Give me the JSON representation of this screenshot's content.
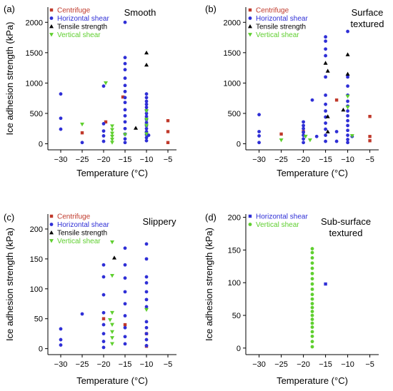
{
  "colors": {
    "Centrifuge": "#c0392b",
    "Horizontal shear": "#2f2fd6",
    "Tensile strength": "#000000",
    "Vertical shear": "#5fcf2f"
  },
  "chart_data": [
    {
      "type": "scatter",
      "letter": "(a)",
      "caption": [
        "Smooth"
      ],
      "xlabel": "Temperature (°C)",
      "ylabel": "Ice adhesion strength (kPa)",
      "xlim": [
        -33,
        -3
      ],
      "ylim": [
        -100,
        2250
      ],
      "xticks": [
        -30,
        -25,
        -20,
        -15,
        -10,
        -5
      ],
      "yticks": [
        0,
        500,
        1000,
        1500,
        2000
      ],
      "legend": [
        "Centrifuge",
        "Horizontal shear",
        "Tensile strength",
        "Vertical shear"
      ],
      "series": [
        {
          "name": "Centrifuge",
          "marker": "square",
          "points": [
            [
              -25,
              180
            ],
            [
              -19.5,
              360
            ],
            [
              -15.5,
              770
            ],
            [
              -5,
              380
            ],
            [
              -5,
              200
            ],
            [
              -5,
              20
            ]
          ]
        },
        {
          "name": "Horizontal shear",
          "marker": "circle",
          "points": [
            [
              -30,
              820
            ],
            [
              -30,
              420
            ],
            [
              -30,
              240
            ],
            [
              -25,
              20
            ],
            [
              -20,
              950
            ],
            [
              -20,
              330
            ],
            [
              -20,
              210
            ],
            [
              -20,
              130
            ],
            [
              -20,
              40
            ],
            [
              -15,
              2000
            ],
            [
              -15,
              1420
            ],
            [
              -15,
              1320
            ],
            [
              -15,
              1220
            ],
            [
              -15,
              1080
            ],
            [
              -15,
              960
            ],
            [
              -15,
              860
            ],
            [
              -15,
              760
            ],
            [
              -15,
              680
            ],
            [
              -15,
              560
            ],
            [
              -15,
              460
            ],
            [
              -15,
              360
            ],
            [
              -15,
              250
            ],
            [
              -15,
              160
            ],
            [
              -15,
              80
            ],
            [
              -15,
              20
            ],
            [
              -10,
              820
            ],
            [
              -10,
              760
            ],
            [
              -10,
              700
            ],
            [
              -10,
              650
            ],
            [
              -10,
              600
            ],
            [
              -10,
              550
            ],
            [
              -10,
              500
            ],
            [
              -10,
              450
            ],
            [
              -10,
              400
            ],
            [
              -10,
              350
            ],
            [
              -10,
              300
            ],
            [
              -10,
              250
            ],
            [
              -10,
              200
            ],
            [
              -10,
              150
            ],
            [
              -10,
              100
            ],
            [
              -10,
              50
            ],
            [
              -9.5,
              140
            ]
          ]
        },
        {
          "name": "Tensile strength",
          "marker": "triangle-up",
          "points": [
            [
              -10,
              1500
            ],
            [
              -10,
              1300
            ],
            [
              -12.5,
              260
            ]
          ]
        },
        {
          "name": "Vertical shear",
          "marker": "triangle-down",
          "points": [
            [
              -25,
              320
            ],
            [
              -19.5,
              1000
            ],
            [
              -18,
              290
            ],
            [
              -18,
              230
            ],
            [
              -18,
              170
            ],
            [
              -18,
              120
            ],
            [
              -18,
              70
            ],
            [
              -18,
              20
            ],
            [
              -15,
              150
            ],
            [
              -10,
              540
            ],
            [
              -10,
              400
            ],
            [
              -10,
              300
            ],
            [
              -10,
              160
            ]
          ]
        }
      ]
    },
    {
      "type": "scatter",
      "letter": "(b)",
      "caption": [
        "Surface",
        "textured"
      ],
      "xlabel": "Temperature (°C)",
      "ylabel": "",
      "xlim": [
        -33,
        -3
      ],
      "ylim": [
        -100,
        2250
      ],
      "xticks": [
        -30,
        -25,
        -20,
        -15,
        -10,
        -5
      ],
      "yticks": [
        0,
        500,
        1000,
        1500,
        2000
      ],
      "legend": [
        "Centrifuge",
        "Horizontal shear",
        "Tensile strength",
        "Vertical shear"
      ],
      "series": [
        {
          "name": "Centrifuge",
          "marker": "square",
          "points": [
            [
              -25,
              160
            ],
            [
              -20,
              200
            ],
            [
              -12.5,
              720
            ],
            [
              -5,
              450
            ],
            [
              -5,
              120
            ],
            [
              -5,
              50
            ]
          ]
        },
        {
          "name": "Horizontal shear",
          "marker": "circle",
          "points": [
            [
              -30,
              480
            ],
            [
              -30,
              200
            ],
            [
              -30,
              130
            ],
            [
              -30,
              20
            ],
            [
              -20,
              360
            ],
            [
              -20,
              300
            ],
            [
              -20,
              250
            ],
            [
              -20,
              190
            ],
            [
              -20,
              140
            ],
            [
              -20,
              80
            ],
            [
              -20,
              20
            ],
            [
              -18,
              720
            ],
            [
              -17,
              120
            ],
            [
              -15,
              1760
            ],
            [
              -15,
              1690
            ],
            [
              -15,
              1560
            ],
            [
              -15,
              1450
            ],
            [
              -15,
              1100
            ],
            [
              -15,
              800
            ],
            [
              -15,
              650
            ],
            [
              -15,
              540
            ],
            [
              -15,
              440
            ],
            [
              -15,
              340
            ],
            [
              -15,
              240
            ],
            [
              -15,
              140
            ],
            [
              -15,
              40
            ],
            [
              -12.5,
              200
            ],
            [
              -12.5,
              40
            ],
            [
              -10,
              1850
            ],
            [
              -10,
              1100
            ],
            [
              -10,
              950
            ],
            [
              -10,
              800
            ],
            [
              -10,
              700
            ],
            [
              -10,
              620
            ],
            [
              -10,
              540
            ],
            [
              -10,
              460
            ],
            [
              -10,
              380
            ],
            [
              -10,
              300
            ],
            [
              -10,
              220
            ],
            [
              -10,
              140
            ],
            [
              -10,
              70
            ],
            [
              -10,
              20
            ],
            [
              -9,
              120
            ]
          ]
        },
        {
          "name": "Tensile strength",
          "marker": "triangle-up",
          "points": [
            [
              -15,
              1330
            ],
            [
              -14.5,
              1200
            ],
            [
              -14.5,
              450
            ],
            [
              -14.5,
              200
            ],
            [
              -10,
              1470
            ],
            [
              -10,
              1150
            ],
            [
              -11,
              560
            ]
          ]
        },
        {
          "name": "Vertical shear",
          "marker": "triangle-down",
          "points": [
            [
              -25,
              60
            ],
            [
              -19.5,
              120
            ],
            [
              -18.5,
              60
            ],
            [
              -10,
              780
            ],
            [
              -10,
              600
            ],
            [
              -9,
              130
            ]
          ]
        }
      ]
    },
    {
      "type": "scatter",
      "letter": "(c)",
      "caption": [
        "Slippery"
      ],
      "xlabel": "Temperature (°C)",
      "ylabel": "Ice adhesion strength (kPa)",
      "xlim": [
        -33,
        -3
      ],
      "ylim": [
        -10,
        225
      ],
      "xticks": [
        -30,
        -25,
        -20,
        -15,
        -10,
        -5
      ],
      "yticks": [
        0,
        50,
        100,
        150,
        200
      ],
      "legend": [
        "Centrifuge",
        "Horizontal shear",
        "Tensile strength",
        "Vertical shear"
      ],
      "series": [
        {
          "name": "Centrifuge",
          "marker": "square",
          "points": [
            [
              -20,
              50
            ],
            [
              -15,
              40
            ],
            [
              -10,
              4
            ],
            [
              -10,
              25
            ]
          ]
        },
        {
          "name": "Horizontal shear",
          "marker": "circle",
          "points": [
            [
              -30,
              33
            ],
            [
              -30,
              15
            ],
            [
              -30,
              6
            ],
            [
              -25,
              58
            ],
            [
              -20,
              140
            ],
            [
              -20,
              120
            ],
            [
              -20,
              90
            ],
            [
              -20,
              60
            ],
            [
              -20,
              40
            ],
            [
              -20,
              25
            ],
            [
              -20,
              12
            ],
            [
              -20,
              2
            ],
            [
              -15,
              168
            ],
            [
              -15,
              140
            ],
            [
              -15,
              118
            ],
            [
              -15,
              95
            ],
            [
              -15,
              75
            ],
            [
              -15,
              55
            ],
            [
              -15,
              35
            ],
            [
              -15,
              20
            ],
            [
              -15,
              8
            ],
            [
              -10,
              175
            ],
            [
              -10,
              150
            ],
            [
              -10,
              120
            ],
            [
              -10,
              110
            ],
            [
              -10,
              95
            ],
            [
              -10,
              82
            ],
            [
              -10,
              70
            ],
            [
              -10,
              45
            ],
            [
              -10,
              35
            ],
            [
              -10,
              25
            ],
            [
              -10,
              15
            ],
            [
              -10,
              5
            ]
          ]
        },
        {
          "name": "Tensile strength",
          "marker": "triangle-up",
          "points": [
            [
              -17.5,
              152
            ]
          ]
        },
        {
          "name": "Vertical shear",
          "marker": "triangle-down",
          "points": [
            [
              -18,
              178
            ],
            [
              -18,
              122
            ],
            [
              -18.5,
              48
            ],
            [
              -18,
              60
            ],
            [
              -18,
              40
            ],
            [
              -18,
              28
            ],
            [
              -18,
              18
            ],
            [
              -18,
              8
            ],
            [
              -10,
              65
            ]
          ]
        }
      ]
    },
    {
      "type": "scatter",
      "letter": "(d)",
      "caption": [
        "Sub-surface",
        "textured"
      ],
      "xlabel": "Temperature (°C)",
      "ylabel": "Ice adhesion strength (kPa)",
      "xlim": [
        -33,
        -3
      ],
      "ylim": [
        -10,
        205
      ],
      "xticks": [
        -30,
        -25,
        -20,
        -15,
        -10,
        -5
      ],
      "yticks": [
        0,
        50,
        100,
        150,
        200
      ],
      "legend": [
        "Horizontal shear",
        "Vertical shear"
      ],
      "series": [
        {
          "name": "Horizontal shear",
          "marker": "square",
          "points": [
            [
              -15,
              98
            ]
          ]
        },
        {
          "name": "Vertical shear",
          "marker": "circle",
          "points": [
            [
              -18,
              2
            ],
            [
              -18,
              10
            ],
            [
              -18,
              18
            ],
            [
              -18,
              25
            ],
            [
              -18,
              32
            ],
            [
              -18,
              38
            ],
            [
              -18,
              44
            ],
            [
              -18,
              50
            ],
            [
              -18,
              56
            ],
            [
              -18,
              62
            ],
            [
              -18,
              68
            ],
            [
              -18,
              75
            ],
            [
              -18,
              82
            ],
            [
              -18,
              90
            ],
            [
              -18,
              98
            ],
            [
              -18,
              106
            ],
            [
              -18,
              114
            ],
            [
              -18,
              122
            ],
            [
              -18,
              130
            ],
            [
              -18,
              138
            ],
            [
              -18,
              146
            ],
            [
              -18,
              152
            ]
          ]
        }
      ]
    }
  ]
}
